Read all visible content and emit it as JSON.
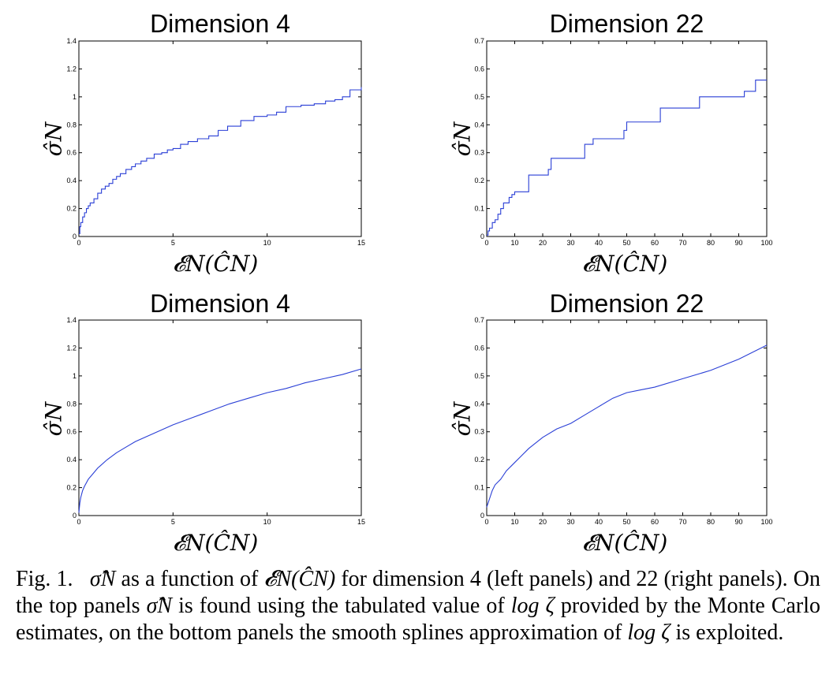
{
  "chart_data": [
    {
      "type": "line",
      "title": "Dimension 4",
      "xlabel": "𝓔N(ĈN)",
      "ylabel": "σ̂N",
      "xlim": [
        0,
        15
      ],
      "ylim": [
        0,
        1.4
      ],
      "xticks": [
        0,
        5,
        10,
        15
      ],
      "yticks": [
        0,
        0.2,
        0.4,
        0.6,
        0.8,
        1,
        1.2,
        1.4
      ],
      "step": true,
      "color": "#2a3fd6",
      "series": [
        {
          "x": [
            0,
            0.05,
            0.1,
            0.2,
            0.3,
            0.4,
            0.5,
            0.6,
            0.8,
            1.0,
            1.2,
            1.4,
            1.6,
            1.8,
            2.0,
            2.2,
            2.5,
            2.8,
            3.0,
            3.3,
            3.6,
            4.0,
            4.4,
            4.7,
            5.0,
            5.4,
            5.8,
            6.3,
            6.9,
            7.4,
            7.9,
            8.6,
            9.3,
            10.0,
            10.5,
            11.0,
            11.8,
            12.5,
            13.1,
            13.6,
            14.0,
            14.4,
            15.0
          ],
          "y": [
            0.02,
            0.07,
            0.1,
            0.14,
            0.17,
            0.2,
            0.22,
            0.24,
            0.27,
            0.31,
            0.34,
            0.36,
            0.38,
            0.41,
            0.43,
            0.45,
            0.48,
            0.5,
            0.52,
            0.54,
            0.56,
            0.59,
            0.6,
            0.62,
            0.63,
            0.66,
            0.68,
            0.7,
            0.72,
            0.76,
            0.79,
            0.83,
            0.86,
            0.87,
            0.89,
            0.93,
            0.94,
            0.95,
            0.97,
            0.98,
            1.0,
            1.05,
            1.07
          ]
        }
      ]
    },
    {
      "type": "line",
      "title": "Dimension 22",
      "xlabel": "𝓔N(ĈN)",
      "ylabel": "σ̂N",
      "xlim": [
        0,
        100
      ],
      "ylim": [
        0,
        0.7
      ],
      "xticks": [
        0,
        10,
        20,
        30,
        40,
        50,
        60,
        70,
        80,
        90,
        100
      ],
      "yticks": [
        0,
        0.1,
        0.2,
        0.3,
        0.4,
        0.5,
        0.6,
        0.7
      ],
      "step": true,
      "color": "#2a3fd6",
      "series": [
        {
          "x": [
            0,
            0.5,
            1.0,
            2.0,
            3.0,
            4.0,
            5.0,
            6.0,
            7.0,
            8.0,
            9.0,
            10.0,
            12.0,
            15.0,
            22.0,
            23.0,
            35.0,
            38.0,
            49.0,
            50.0,
            53.0,
            62.0,
            76.0,
            92.0,
            96.0,
            100.0
          ],
          "y": [
            0.005,
            0.02,
            0.03,
            0.05,
            0.06,
            0.08,
            0.1,
            0.12,
            0.12,
            0.14,
            0.15,
            0.16,
            0.16,
            0.22,
            0.24,
            0.28,
            0.33,
            0.35,
            0.38,
            0.41,
            0.41,
            0.46,
            0.5,
            0.52,
            0.56,
            0.56
          ]
        }
      ]
    },
    {
      "type": "line",
      "title": "Dimension 4",
      "xlabel": "𝓔N(ĈN)",
      "ylabel": "σ̂N",
      "xlim": [
        0,
        15
      ],
      "ylim": [
        0,
        1.4
      ],
      "xticks": [
        0,
        5,
        10,
        15
      ],
      "yticks": [
        0,
        0.2,
        0.4,
        0.6,
        0.8,
        1,
        1.2,
        1.4
      ],
      "step": false,
      "color": "#2a3fd6",
      "series": [
        {
          "x": [
            0,
            0.05,
            0.1,
            0.2,
            0.3,
            0.5,
            0.75,
            1.0,
            1.5,
            2.0,
            2.5,
            3.0,
            4.0,
            5.0,
            6.0,
            7.0,
            8.0,
            9.0,
            10.0,
            11.0,
            12.0,
            13.0,
            14.0,
            15.0
          ],
          "y": [
            0.02,
            0.09,
            0.13,
            0.18,
            0.21,
            0.26,
            0.3,
            0.34,
            0.4,
            0.45,
            0.49,
            0.53,
            0.59,
            0.65,
            0.7,
            0.75,
            0.8,
            0.84,
            0.88,
            0.91,
            0.95,
            0.98,
            1.01,
            1.05
          ]
        }
      ]
    },
    {
      "type": "line",
      "title": "Dimension 22",
      "xlabel": "𝓔N(ĈN)",
      "ylabel": "σ̂N",
      "xlim": [
        0,
        100
      ],
      "ylim": [
        0,
        0.7
      ],
      "xticks": [
        0,
        10,
        20,
        30,
        40,
        50,
        60,
        70,
        80,
        90,
        100
      ],
      "yticks": [
        0,
        0.1,
        0.2,
        0.3,
        0.4,
        0.5,
        0.6,
        0.7
      ],
      "step": false,
      "color": "#2a3fd6",
      "series": [
        {
          "x": [
            0,
            1,
            2,
            3,
            5,
            7,
            10,
            12,
            15,
            20,
            25,
            30,
            35,
            40,
            45,
            50,
            55,
            60,
            70,
            80,
            90,
            100
          ],
          "y": [
            0.03,
            0.06,
            0.09,
            0.11,
            0.13,
            0.16,
            0.19,
            0.21,
            0.24,
            0.28,
            0.31,
            0.33,
            0.36,
            0.39,
            0.42,
            0.44,
            0.45,
            0.46,
            0.49,
            0.52,
            0.56,
            0.61
          ]
        }
      ]
    }
  ],
  "caption": {
    "prefix": "Fig. 1.",
    "sigma_symbol": "σ̂N",
    "text1": "as a function of",
    "energy_symbol": "𝓔N(ĈN)",
    "text2": "for dimension 4 (left panels) and 22 (right panels). On the top panels",
    "text3": "is found using the tabulated value of",
    "log_zeta": "log ζ",
    "text4": "provided by the Monte Carlo estimates, on the bottom panels the smooth splines approximation of",
    "text5": "is exploited."
  }
}
